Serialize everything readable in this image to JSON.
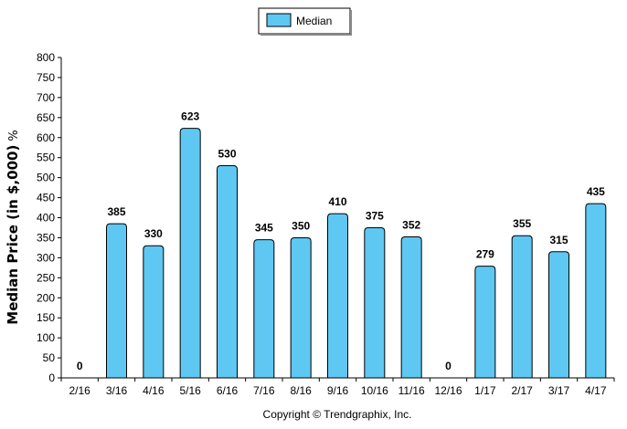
{
  "chart_data": {
    "type": "bar",
    "categories": [
      "2/16",
      "3/16",
      "4/16",
      "5/16",
      "6/16",
      "7/16",
      "8/16",
      "9/16",
      "10/16",
      "11/16",
      "12/16",
      "1/17",
      "2/17",
      "3/17",
      "4/17"
    ],
    "series": [
      {
        "name": "Median",
        "values": [
          0,
          385,
          330,
          623,
          530,
          345,
          350,
          410,
          375,
          352,
          0,
          279,
          355,
          315,
          435
        ]
      }
    ],
    "data_labels": [
      "0",
      "385",
      "330",
      "623",
      "530",
      "345",
      "350",
      "410",
      "375",
      "352",
      "0",
      "279",
      "355",
      "315",
      "435"
    ],
    "ylabel_text": "Median Price (in $,000)",
    "ylabel_unit": "%",
    "ylim": [
      0,
      800
    ],
    "yticks": [
      "0",
      "50",
      "100",
      "150",
      "200",
      "250",
      "300",
      "350",
      "400",
      "450",
      "500",
      "550",
      "600",
      "650",
      "700",
      "750",
      "800"
    ],
    "ytick_values": [
      0,
      50,
      100,
      150,
      200,
      250,
      300,
      350,
      400,
      450,
      500,
      550,
      600,
      650,
      700,
      750,
      800
    ],
    "grid": false,
    "legend_position": "top-center",
    "bar_color": "#5ec8f2",
    "bar_outline_color": "#000000"
  },
  "legend": {
    "label": "Median"
  },
  "footer": {
    "copyright": "Copyright © Trendgraphix, Inc."
  }
}
